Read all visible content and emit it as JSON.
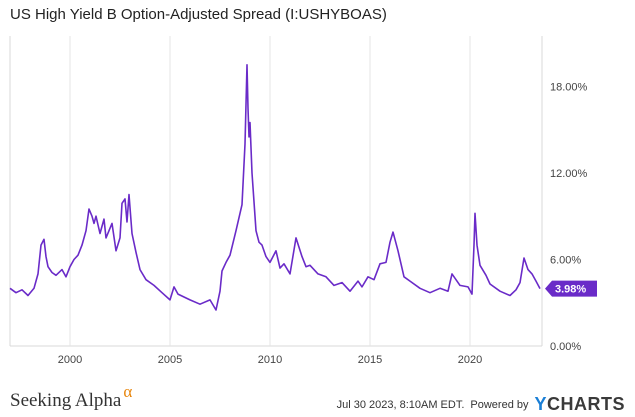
{
  "chart_data": {
    "type": "line",
    "title": "US High Yield B Option-Adjusted Spread (I:USHYBOAS)",
    "xlabel": "",
    "ylabel": "",
    "xlim": [
      1997.0,
      2023.6
    ],
    "ylim": [
      0,
      21.5
    ],
    "x_ticks": [
      2000,
      2005,
      2010,
      2015,
      2020
    ],
    "x_tick_labels": [
      "2000",
      "2005",
      "2010",
      "2015",
      "2020"
    ],
    "y_ticks": [
      0,
      6,
      12,
      18
    ],
    "y_tick_labels": [
      "0.00%",
      "6.00%",
      "12.00%",
      "18.00%"
    ],
    "grid": "vertical",
    "line_color": "#6a2bc8",
    "last_value_label": "3.98%",
    "series": [
      {
        "name": "",
        "x": [
          1997.0,
          1997.3,
          1997.6,
          1997.9,
          1998.2,
          1998.4,
          1998.55,
          1998.7,
          1998.8,
          1998.9,
          1999.1,
          1999.3,
          1999.6,
          1999.8,
          2000.0,
          2000.2,
          2000.4,
          2000.6,
          2000.8,
          2000.95,
          2001.1,
          2001.2,
          2001.3,
          2001.5,
          2001.7,
          2001.8,
          2001.95,
          2002.1,
          2002.3,
          2002.5,
          2002.6,
          2002.75,
          2002.85,
          2002.95,
          2003.1,
          2003.3,
          2003.5,
          2003.8,
          2004.2,
          2004.6,
          2005.0,
          2005.2,
          2005.4,
          2005.7,
          2006.0,
          2006.5,
          2007.0,
          2007.3,
          2007.5,
          2007.6,
          2007.8,
          2008.0,
          2008.3,
          2008.6,
          2008.75,
          2008.85,
          2008.9,
          2008.95,
          2009.0,
          2009.1,
          2009.2,
          2009.3,
          2009.45,
          2009.6,
          2009.8,
          2010.0,
          2010.3,
          2010.5,
          2010.7,
          2011.0,
          2011.3,
          2011.6,
          2011.8,
          2012.0,
          2012.4,
          2012.8,
          2013.2,
          2013.6,
          2014.0,
          2014.4,
          2014.6,
          2014.9,
          2015.2,
          2015.5,
          2015.8,
          2016.0,
          2016.15,
          2016.4,
          2016.7,
          2017.0,
          2017.5,
          2018.0,
          2018.5,
          2018.9,
          2019.1,
          2019.5,
          2019.9,
          2020.1,
          2020.2,
          2020.25,
          2020.35,
          2020.5,
          2020.8,
          2021.0,
          2021.5,
          2022.0,
          2022.3,
          2022.5,
          2022.7,
          2022.9,
          2023.1,
          2023.3,
          2023.5
        ],
        "values": [
          4.0,
          3.7,
          3.9,
          3.5,
          4.0,
          5.0,
          7.0,
          7.4,
          6.2,
          5.5,
          5.1,
          4.9,
          5.3,
          4.8,
          5.5,
          6.0,
          6.3,
          7.0,
          8.0,
          9.5,
          9.0,
          8.5,
          9.0,
          7.8,
          8.8,
          7.5,
          8.0,
          8.5,
          6.6,
          7.5,
          9.9,
          10.2,
          8.6,
          10.5,
          7.8,
          6.5,
          5.3,
          4.6,
          4.2,
          3.7,
          3.2,
          4.1,
          3.6,
          3.4,
          3.2,
          2.9,
          3.2,
          2.5,
          3.8,
          5.2,
          5.8,
          6.3,
          8.0,
          9.8,
          14.0,
          19.5,
          16.5,
          14.5,
          15.5,
          12.0,
          10.0,
          8.0,
          7.2,
          7.0,
          6.2,
          5.8,
          6.6,
          5.4,
          5.7,
          5.0,
          7.5,
          6.2,
          5.5,
          5.6,
          5.0,
          4.8,
          4.2,
          4.4,
          3.8,
          4.5,
          4.1,
          4.8,
          4.6,
          5.7,
          5.8,
          7.2,
          7.9,
          6.6,
          4.8,
          4.5,
          4.0,
          3.7,
          4.0,
          3.8,
          5.0,
          4.2,
          4.1,
          3.6,
          7.0,
          9.2,
          7.0,
          5.6,
          4.9,
          4.3,
          3.8,
          3.5,
          3.9,
          4.4,
          6.1,
          5.3,
          5.0,
          4.5,
          3.98
        ]
      }
    ]
  },
  "footer": {
    "brand_left": "Seeking Alpha",
    "brand_left_symbol": "α",
    "timestamp": "Jul 30 2023, 8:10AM EDT.",
    "powered_by": "Powered by",
    "brand_right_y": "Y",
    "brand_right_rest": "CHARTS"
  }
}
